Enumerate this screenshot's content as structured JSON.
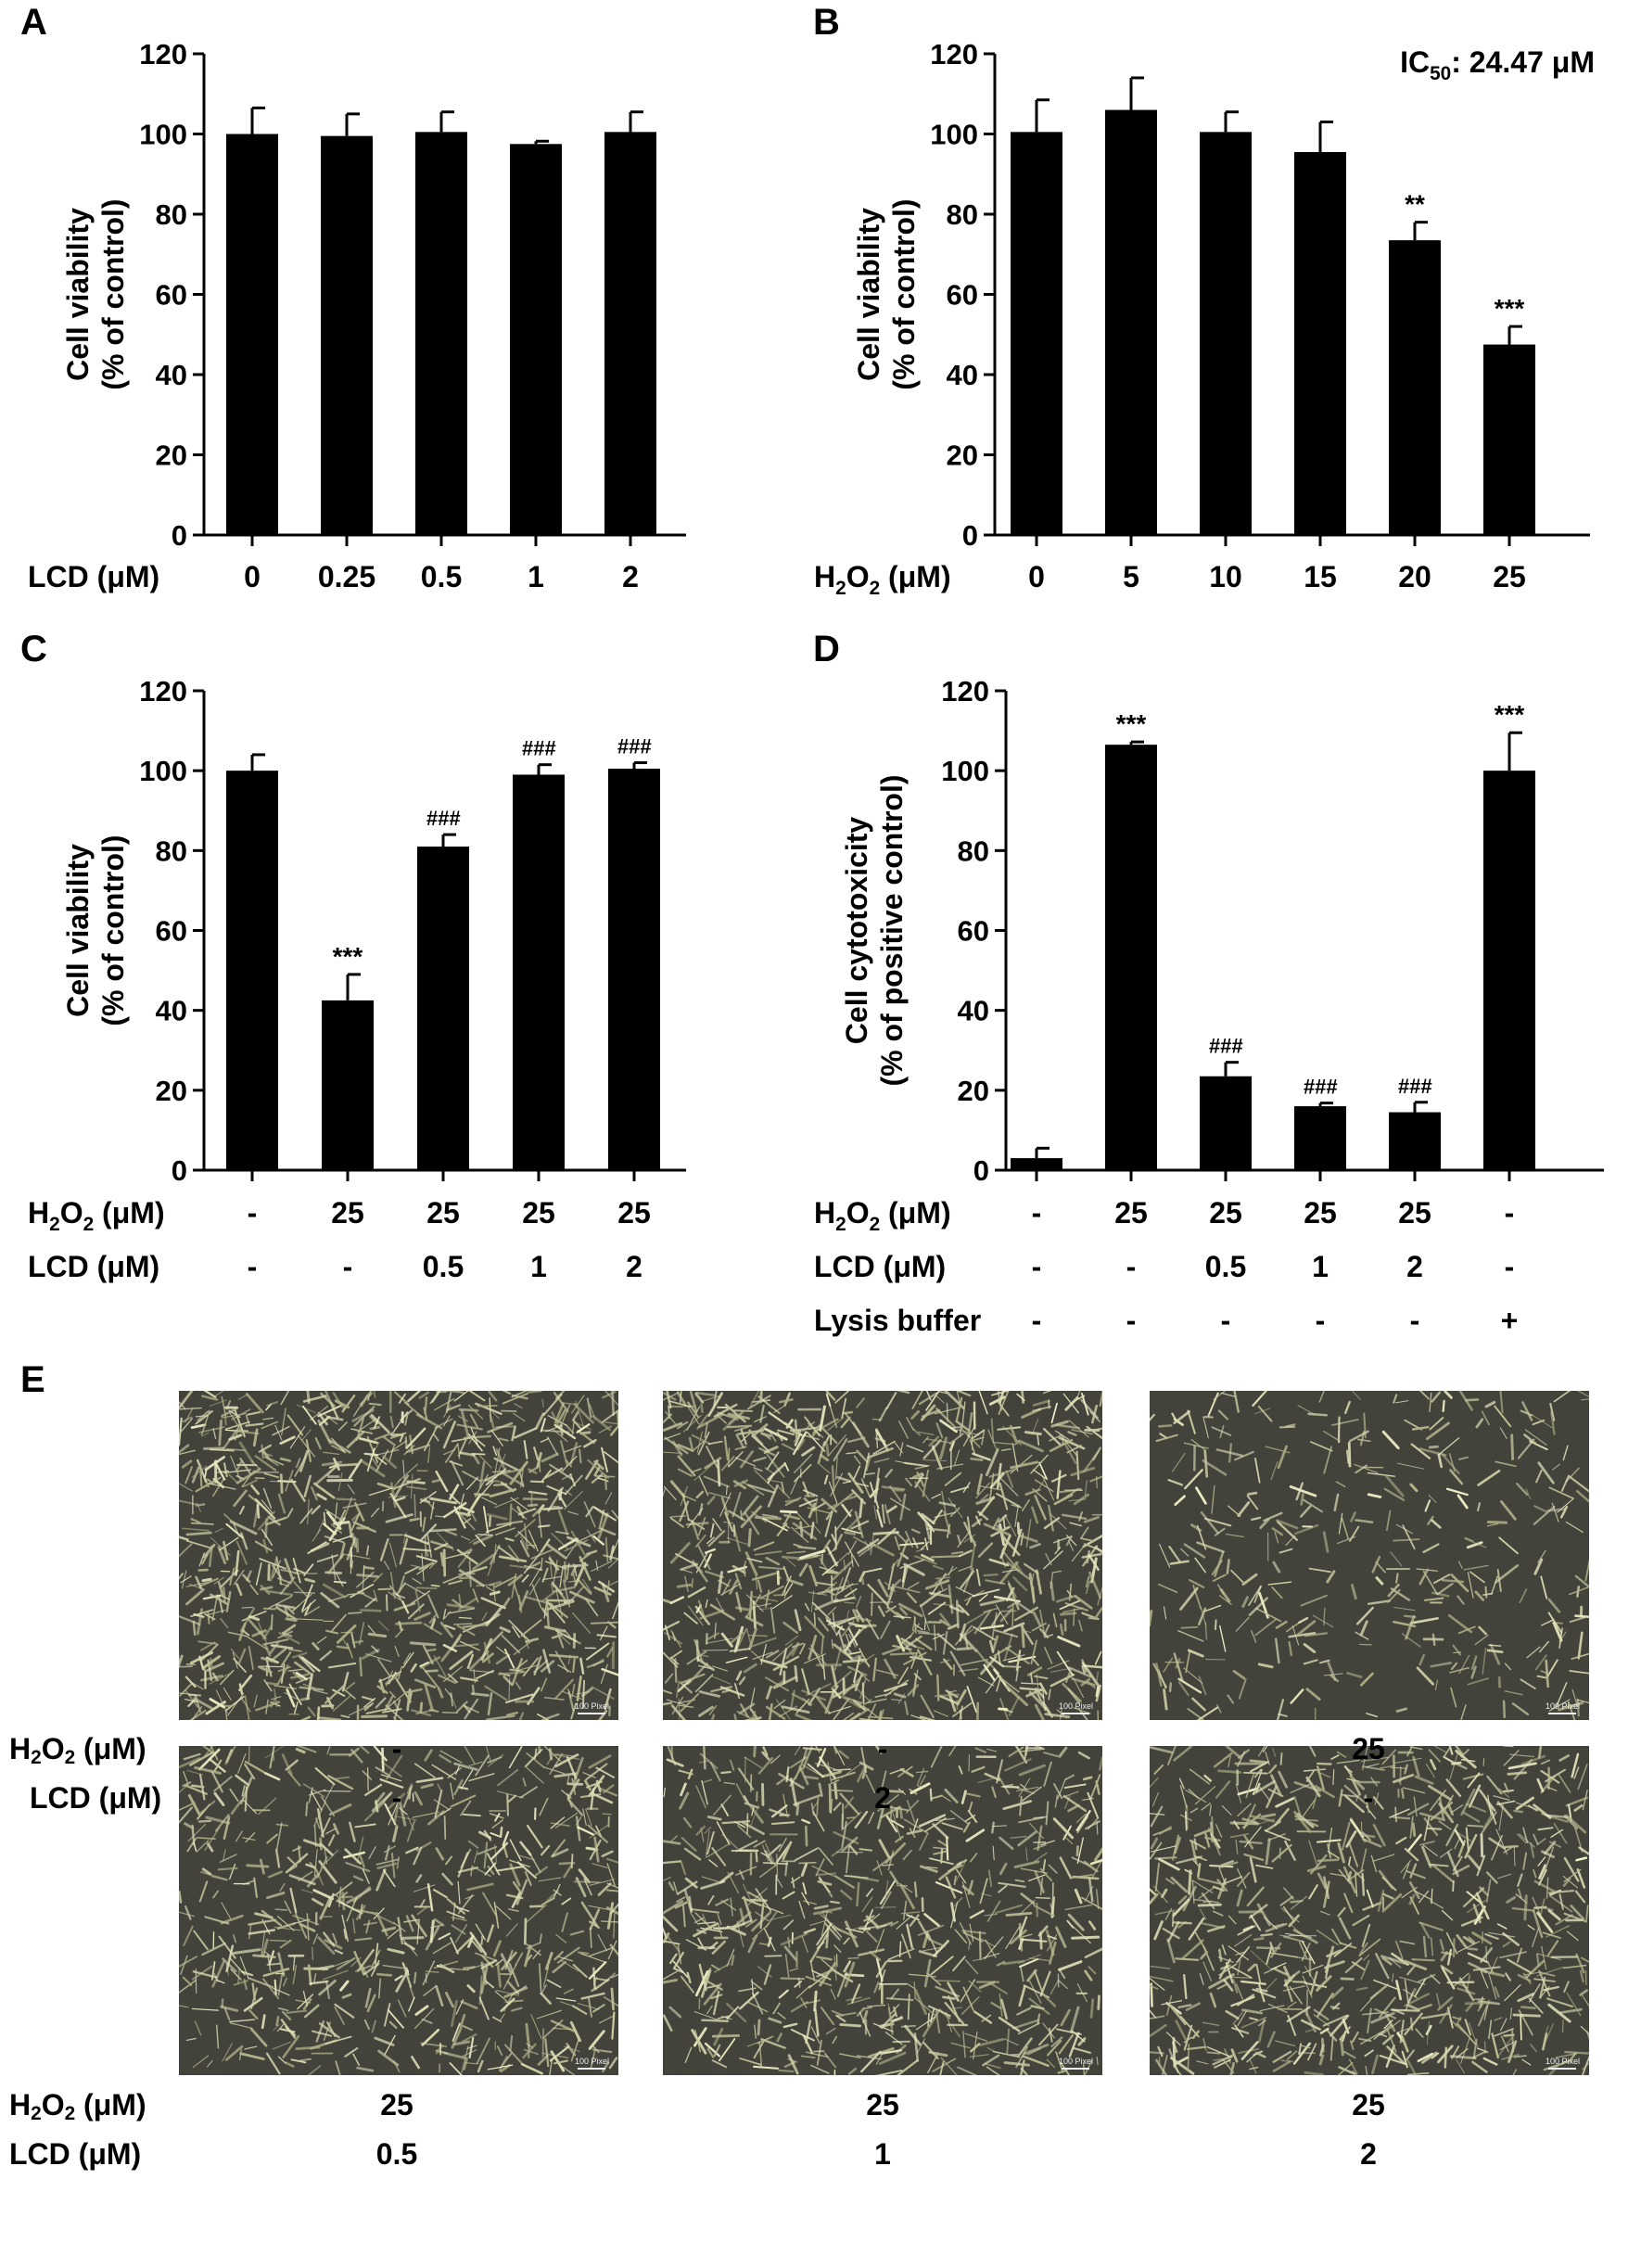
{
  "chart_data": [
    {
      "type": "bar",
      "panel": "A",
      "ylabel_line1": "Cell viability",
      "ylabel_line2": "(% of control)",
      "ylim": [
        0,
        120
      ],
      "yticks": [
        0,
        20,
        40,
        60,
        80,
        100,
        120
      ],
      "row_labels": [
        "LCD (μM)"
      ],
      "rows": [
        [
          "0",
          "0.25",
          "0.5",
          "1",
          "2"
        ]
      ],
      "values": [
        100,
        99.5,
        100.5,
        97.5,
        100.5
      ],
      "errors": [
        6.5,
        5.5,
        5,
        0.7,
        5
      ],
      "annotations": [
        "",
        "",
        "",
        "",
        ""
      ],
      "note": ""
    },
    {
      "type": "bar",
      "panel": "B",
      "ylabel_line1": "Cell viability",
      "ylabel_line2": "(% of control)",
      "ylim": [
        0,
        120
      ],
      "yticks": [
        0,
        20,
        40,
        60,
        80,
        100,
        120
      ],
      "row_labels": [
        "H2O2 (μM)"
      ],
      "rows": [
        [
          "0",
          "5",
          "10",
          "15",
          "20",
          "25"
        ]
      ],
      "values": [
        100.5,
        106,
        100.5,
        95.5,
        73.5,
        47.5
      ],
      "errors": [
        8,
        8,
        5,
        7.5,
        4.5,
        4.5
      ],
      "annotations": [
        "",
        "",
        "",
        "",
        "**",
        "***"
      ],
      "note": "IC50: 24.47 μM"
    },
    {
      "type": "bar",
      "panel": "C",
      "ylabel_line1": "Cell viability",
      "ylabel_line2": "(% of control)",
      "ylim": [
        0,
        120
      ],
      "yticks": [
        0,
        20,
        40,
        60,
        80,
        100,
        120
      ],
      "row_labels": [
        "H2O2 (μM)",
        "LCD (μM)"
      ],
      "rows": [
        [
          "-",
          "25",
          "25",
          "25",
          "25"
        ],
        [
          "-",
          "-",
          "0.5",
          "1",
          "2"
        ]
      ],
      "values": [
        100,
        42.5,
        81,
        99,
        100.5
      ],
      "errors": [
        4,
        6.5,
        3,
        2.5,
        1.5
      ],
      "annotations": [
        "",
        "***",
        "###",
        "###",
        "###"
      ],
      "note": ""
    },
    {
      "type": "bar",
      "panel": "D",
      "ylabel_line1": "Cell cytotoxicity",
      "ylabel_line2": "(% of positive control)",
      "ylim": [
        0,
        120
      ],
      "yticks": [
        0,
        20,
        40,
        60,
        80,
        100,
        120
      ],
      "row_labels": [
        "H2O2 (μM)",
        "LCD (μM)",
        "Lysis buffer"
      ],
      "rows": [
        [
          "-",
          "25",
          "25",
          "25",
          "25",
          "-"
        ],
        [
          "-",
          "-",
          "0.5",
          "1",
          "2",
          "-"
        ],
        [
          "-",
          "-",
          "-",
          "-",
          "-",
          "+"
        ]
      ],
      "values": [
        3,
        106.5,
        23.5,
        16,
        14.5,
        100
      ],
      "errors": [
        2.5,
        0.7,
        3.5,
        0.8,
        2.5,
        9.5
      ],
      "annotations": [
        "",
        "***",
        "###",
        "###",
        "###",
        "***"
      ],
      "note": ""
    }
  ],
  "panel_e": {
    "letter": "E",
    "scale_label": "100 Pixel",
    "row1": {
      "h2o2_label": "H2O2 (μM)",
      "lcd_label": "LCD (μM)",
      "h2o2_values": [
        "-",
        "-",
        "25"
      ],
      "lcd_values": [
        "-",
        "2",
        "-"
      ]
    },
    "row2": {
      "h2o2_label": "H2O2 (μM)",
      "lcd_label": "LCD (μM)",
      "h2o2_values": [
        "25",
        "25",
        "25"
      ],
      "lcd_values": [
        "0.5",
        "1",
        "2"
      ]
    },
    "densities": [
      1.0,
      1.0,
      0.35,
      0.7,
      0.75,
      0.8
    ]
  }
}
